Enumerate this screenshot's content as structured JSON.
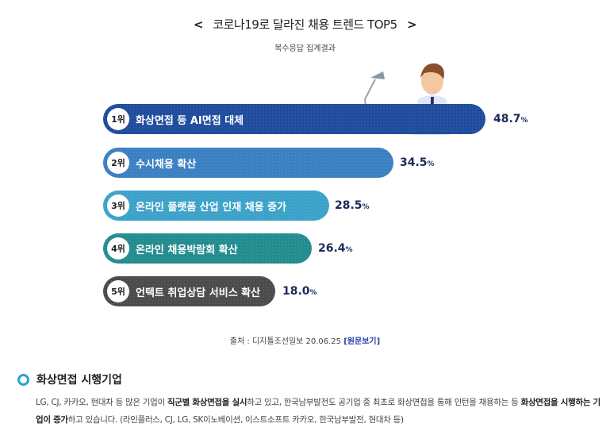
{
  "header": {
    "title": "코로나19로 달라진 채용 트렌드 TOP5",
    "prev_icon": "chevron-left-icon",
    "next_icon": "chevron-right-icon",
    "subtitle": "복수응답 집계결과"
  },
  "chart_data": {
    "type": "bar",
    "orientation": "horizontal",
    "categories": [
      "화상면접 등 AI면접 대체",
      "수시채용 확산",
      "온라인 플랫폼 산업 인재 채용 증가",
      "온라인 채용박람회 확산",
      "언택트 취업상담 서비스 확산"
    ],
    "ranks": [
      "1위",
      "2위",
      "3위",
      "4위",
      "5위"
    ],
    "values": [
      48.7,
      34.5,
      28.5,
      26.4,
      18.0
    ],
    "value_labels": [
      "48.7",
      "34.5",
      "28.5",
      "26.4",
      "18.0"
    ],
    "unit": "%",
    "colors": [
      "#1f4c9c",
      "#3a80c2",
      "#3ca2c9",
      "#238c8f",
      "#4b4b4b"
    ]
  },
  "source": {
    "prefix": "출처 : 디지틀조선일보 20.06.25",
    "link": "[원문보기]"
  },
  "section": {
    "title": "화상면접 시행기업",
    "p1": "LG, CJ, 카카오, 현대차 등 많은 기업이 ",
    "b1": "직군별 화상면접을 실시",
    "p2": "하고 있고, 한국남부발전도 공기업 중 최초로 화상면접을 통해 인턴을 채용하는 등 ",
    "b2": "화상면접을 시행하는 기업이 증가",
    "p3": "하고 있습니다. (라인플러스, CJ, LG, SK이노베이션, 이스트소프트 카카오, 한국남부발전, 현대차 등)"
  }
}
